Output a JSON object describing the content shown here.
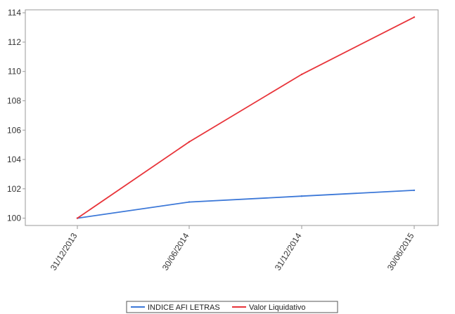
{
  "chart_data": {
    "type": "line",
    "title": "",
    "xlabel": "",
    "ylabel": "",
    "categories": [
      "31/12/2013",
      "30/06/2014",
      "31/12/2014",
      "30/06/2015"
    ],
    "ylim": [
      99.5,
      114.2
    ],
    "yticks": [
      100,
      102,
      104,
      106,
      108,
      110,
      112,
      114
    ],
    "grid": false,
    "legend_position": "bottom",
    "series": [
      {
        "name": "INDICE AFI LETRAS",
        "color": "#3c78d8",
        "values": [
          100.0,
          101.1,
          101.5,
          101.9
        ]
      },
      {
        "name": "Valor Liquidativo",
        "color": "#e8343a",
        "values": [
          100.0,
          105.2,
          109.8,
          113.7
        ]
      }
    ]
  }
}
